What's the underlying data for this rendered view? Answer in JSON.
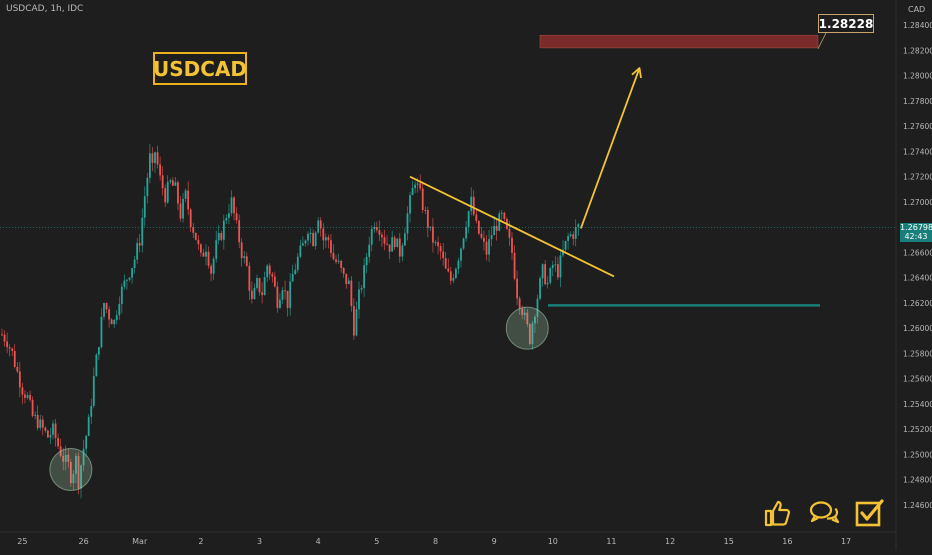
{
  "symbol_line": "USDCAD, 1h, IDC",
  "badge": "USDCAD",
  "currency": "CAD",
  "target_label": "1.28228",
  "last_price": "1.26798",
  "countdown": "42:43",
  "colors": {
    "background": "#1e1e1e",
    "up": "#26a69a",
    "down": "#ef5350",
    "accent": "#f3c335",
    "target_zone": "#7b2c2a",
    "support": "#177e79"
  },
  "icons": [
    "thumbs-up-icon",
    "comments-icon",
    "checkbox-icon"
  ],
  "chart_data": {
    "type": "candlestick",
    "title": "",
    "xlabel": "",
    "ylabel": "",
    "x_ticks": [
      "25",
      "26",
      "Mar",
      "2",
      "3",
      "4",
      "5",
      "8",
      "9",
      "10",
      "11",
      "12",
      "15",
      "16",
      "17"
    ],
    "y_ticks": [
      "1.28400",
      "1.28200",
      "1.28000",
      "1.27800",
      "1.27600",
      "1.27400",
      "1.27200",
      "1.27000",
      "1.26800",
      "1.26600",
      "1.26400",
      "1.26200",
      "1.26000",
      "1.25800",
      "1.25600",
      "1.25400",
      "1.25200",
      "1.25000",
      "1.24800",
      "1.24600"
    ],
    "ylim": [
      1.2452,
      1.2852
    ],
    "close_path": [
      [
        0,
        1.2595
      ],
      [
        2,
        1.259
      ],
      [
        4,
        1.258
      ],
      [
        6,
        1.2565
      ],
      [
        8,
        1.2552
      ],
      [
        10,
        1.2545
      ],
      [
        12,
        1.253
      ],
      [
        14,
        1.2526
      ],
      [
        16,
        1.252
      ],
      [
        18,
        1.2514
      ],
      [
        20,
        1.2519
      ],
      [
        22,
        1.2507
      ],
      [
        24,
        1.2497
      ],
      [
        26,
        1.2491
      ],
      [
        27,
        1.2483
      ],
      [
        28,
        1.2488
      ],
      [
        29,
        1.2496
      ],
      [
        30,
        1.2479
      ],
      [
        32,
        1.2505
      ],
      [
        34,
        1.2525
      ],
      [
        36,
        1.256
      ],
      [
        38,
        1.259
      ],
      [
        40,
        1.262
      ],
      [
        42,
        1.261
      ],
      [
        44,
        1.2605
      ],
      [
        46,
        1.2625
      ],
      [
        48,
        1.2635
      ],
      [
        50,
        1.2645
      ],
      [
        52,
        1.2655
      ],
      [
        54,
        1.267
      ],
      [
        56,
        1.2705
      ],
      [
        58,
        1.2735
      ],
      [
        59,
        1.2725
      ],
      [
        60,
        1.274
      ],
      [
        62,
        1.2718
      ],
      [
        64,
        1.2705
      ],
      [
        66,
        1.2715
      ],
      [
        68,
        1.271
      ],
      [
        70,
        1.269
      ],
      [
        72,
        1.2705
      ],
      [
        74,
        1.2685
      ],
      [
        76,
        1.2672
      ],
      [
        78,
        1.2655
      ],
      [
        80,
        1.2665
      ],
      [
        82,
        1.2645
      ],
      [
        84,
        1.2665
      ],
      [
        86,
        1.2675
      ],
      [
        88,
        1.269
      ],
      [
        90,
        1.27
      ],
      [
        92,
        1.268
      ],
      [
        94,
        1.266
      ],
      [
        96,
        1.2648
      ],
      [
        98,
        1.262
      ],
      [
        100,
        1.2635
      ],
      [
        102,
        1.2628
      ],
      [
        104,
        1.265
      ],
      [
        106,
        1.264
      ],
      [
        108,
        1.2622
      ],
      [
        110,
        1.2635
      ],
      [
        112,
        1.262
      ],
      [
        114,
        1.2642
      ],
      [
        116,
        1.2655
      ],
      [
        118,
        1.2665
      ],
      [
        120,
        1.268
      ],
      [
        122,
        1.267
      ],
      [
        124,
        1.269
      ],
      [
        126,
        1.267
      ],
      [
        128,
        1.267
      ],
      [
        130,
        1.2655
      ],
      [
        132,
        1.265
      ],
      [
        134,
        1.264
      ],
      [
        136,
        1.2635
      ],
      [
        138,
        1.26
      ],
      [
        140,
        1.2625
      ],
      [
        142,
        1.2645
      ],
      [
        144,
        1.267
      ],
      [
        146,
        1.2685
      ],
      [
        148,
        1.268
      ],
      [
        150,
        1.267
      ],
      [
        152,
        1.2665
      ],
      [
        154,
        1.267
      ],
      [
        156,
        1.266
      ],
      [
        158,
        1.268
      ],
      [
        160,
        1.27
      ],
      [
        162,
        1.2718
      ],
      [
        164,
        1.2705
      ],
      [
        166,
        1.269
      ],
      [
        168,
        1.2675
      ],
      [
        170,
        1.2665
      ],
      [
        172,
        1.266
      ],
      [
        174,
        1.2645
      ],
      [
        176,
        1.2638
      ],
      [
        178,
        1.265
      ],
      [
        180,
        1.2665
      ],
      [
        182,
        1.2685
      ],
      [
        184,
        1.27
      ],
      [
        186,
        1.268
      ],
      [
        188,
        1.267
      ],
      [
        190,
        1.266
      ],
      [
        192,
        1.2675
      ],
      [
        194,
        1.2682
      ],
      [
        196,
        1.2688
      ],
      [
        198,
        1.2675
      ],
      [
        200,
        1.266
      ],
      [
        202,
        1.2628
      ],
      [
        204,
        1.2615
      ],
      [
        206,
        1.26
      ],
      [
        207,
        1.2592
      ],
      [
        208,
        1.2605
      ],
      [
        210,
        1.2625
      ],
      [
        212,
        1.2645
      ],
      [
        214,
        1.2635
      ],
      [
        216,
        1.265
      ],
      [
        218,
        1.2645
      ],
      [
        220,
        1.266
      ],
      [
        222,
        1.2672
      ],
      [
        224,
        1.2675
      ],
      [
        226,
        1.268
      ]
    ],
    "path_x_span": [
      0,
      226
    ],
    "target_zone": [
      1.2822,
      1.2832
    ],
    "support_level": 1.2618,
    "trendline": {
      "from_step": 160,
      "from_price": 1.272,
      "to_step": 240,
      "to_price": 1.2641
    },
    "arrow": {
      "from_step": 227,
      "from_price": 1.2679,
      "to_step": 250,
      "to_price": 1.2806
    },
    "highlight_lows": [
      {
        "step": 27,
        "price": 1.2488
      },
      {
        "step": 206,
        "price": 1.26
      }
    ]
  }
}
